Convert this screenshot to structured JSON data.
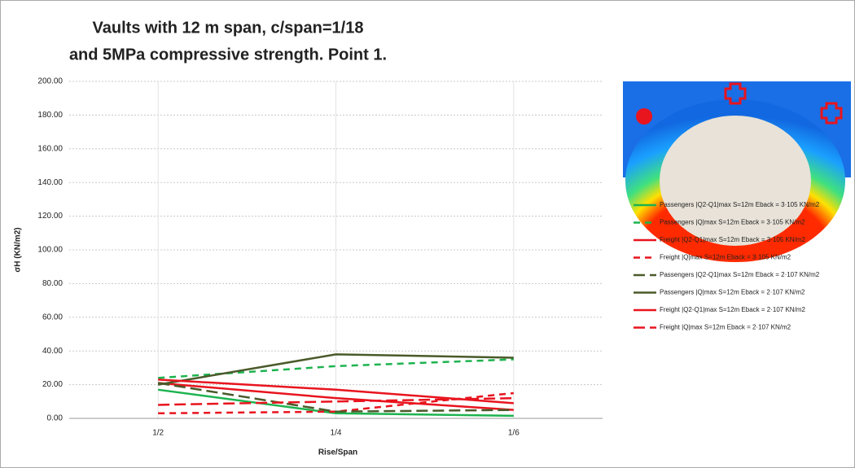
{
  "chart_data": {
    "type": "line",
    "title": [
      "Vaults with 12 m span,  c/span=1/18",
      "and 5MPa compressive strength. Point 1."
    ],
    "x_label": "Rise/Span",
    "y_label": "σH (KN/m2)",
    "categories": [
      "1/2",
      "1/4",
      "1/6"
    ],
    "ylim": [
      0,
      200
    ],
    "yticks": [
      {
        "value": 0,
        "label": "0.00"
      },
      {
        "value": 20,
        "label": "20.00"
      },
      {
        "value": 40,
        "label": "40.00"
      },
      {
        "value": 60,
        "label": "60.00"
      },
      {
        "value": 80,
        "label": "80.00"
      },
      {
        "value": 100,
        "label": "100.00"
      },
      {
        "value": 120,
        "label": "120.00"
      },
      {
        "value": 140,
        "label": "140.00"
      },
      {
        "value": 160,
        "label": "160.00"
      },
      {
        "value": 180,
        "label": "180.00"
      },
      {
        "value": 200,
        "label": "200.00"
      }
    ],
    "grid": true,
    "series": [
      {
        "name": "Passengers |Q2-Q1|max S=12m Eback = 3·105 KN/m2",
        "color": "#1db34f",
        "dash": "solid",
        "values": [
          17,
          3,
          1.5
        ]
      },
      {
        "name": "Passengers |Q|max S=12m Eback = 3·105 KN/m2",
        "color": "#1db34f",
        "dash": "dashed",
        "values": [
          24,
          31,
          35
        ]
      },
      {
        "name": "Freight |Q2-Q1|max S=12m Eback = 3·105 KN/m2",
        "color": "#e8141e",
        "dash": "solid",
        "values": [
          21,
          12,
          5
        ]
      },
      {
        "name": "Freight |Q|max S=12m Eback = 3·105 KN/m2",
        "color": "#e8141e",
        "dash": "dashed",
        "values": [
          3,
          4,
          15
        ]
      },
      {
        "name": "Passengers |Q2-Q1|max S=12m Eback = 2·107 KN/m2",
        "color": "#4a5a2a",
        "dash": "longdash",
        "values": [
          21,
          4,
          5
        ]
      },
      {
        "name": "Passengers |Q|max S=12m Eback = 2·107 KN/m2",
        "color": "#4a5a2a",
        "dash": "solid",
        "values": [
          20,
          38,
          36
        ]
      },
      {
        "name": "Freight |Q2-Q1|max S=12m Eback = 2·107 KN/m2",
        "color": "#e8141e",
        "dash": "solid",
        "values": [
          23,
          17,
          9
        ]
      },
      {
        "name": "Freight |Q|max S=12m Eback = 2·107 KN/m2",
        "color": "#e8141e",
        "dash": "longdash",
        "values": [
          8,
          10,
          12
        ]
      }
    ]
  }
}
